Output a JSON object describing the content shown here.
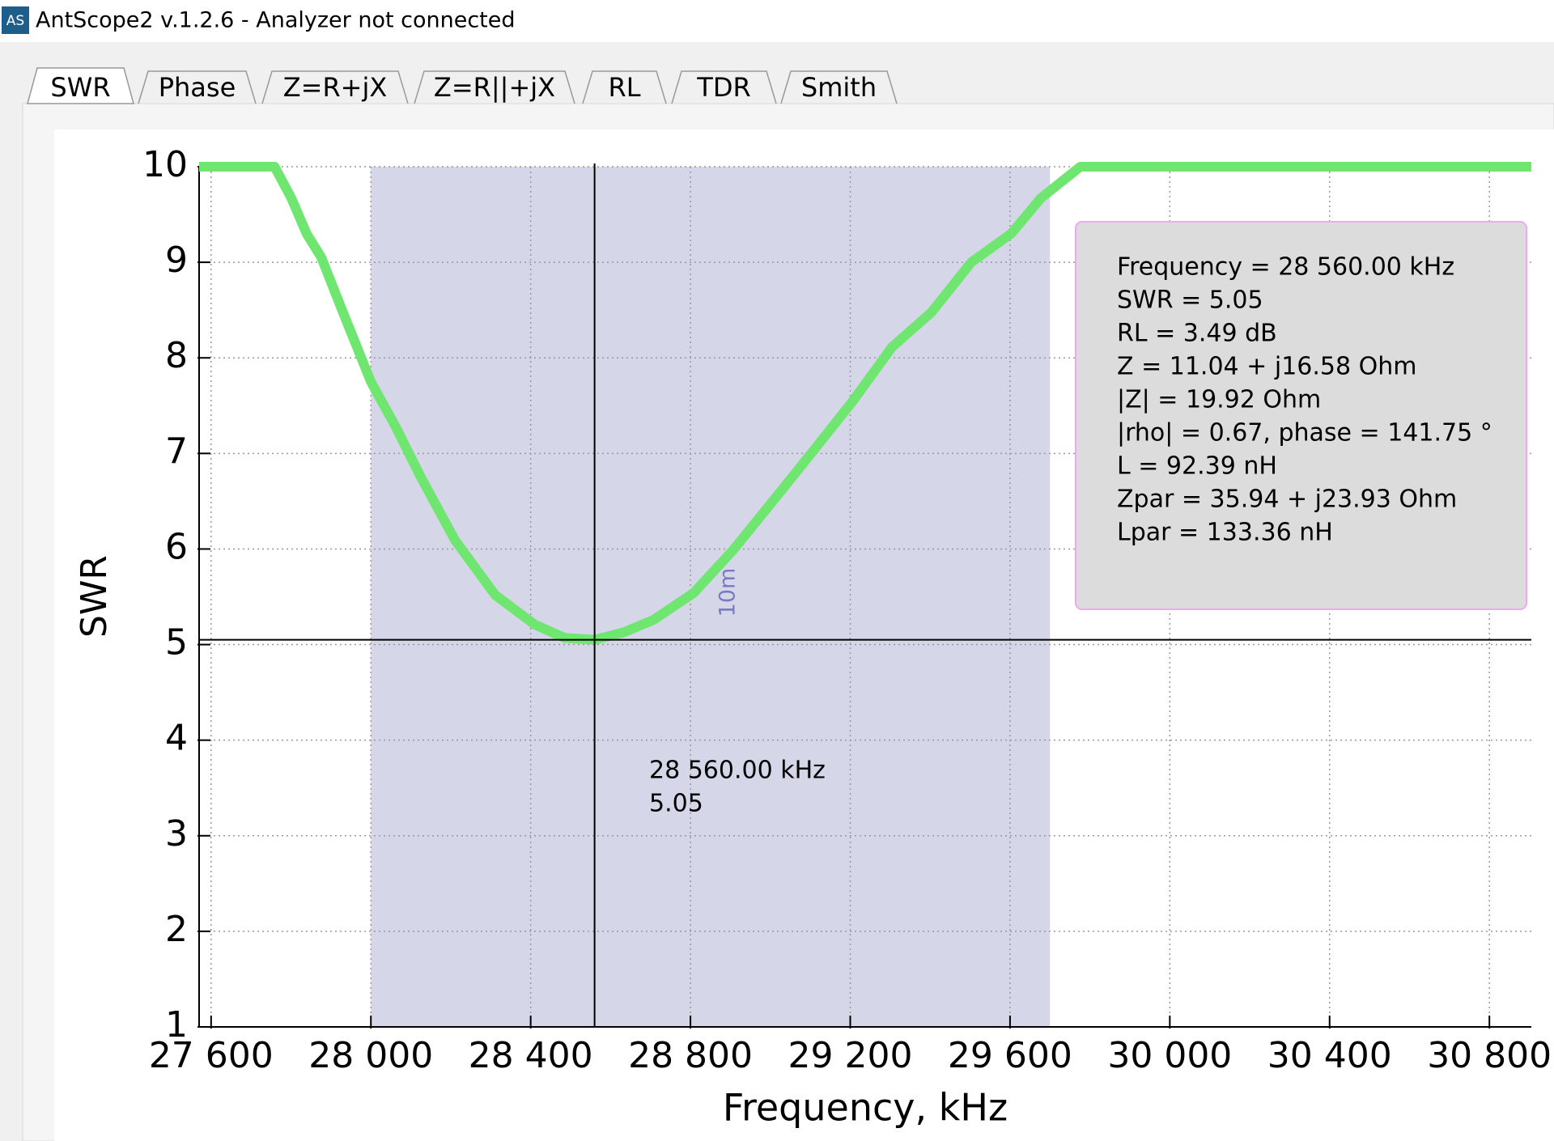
{
  "window": {
    "icon": "AS",
    "title": "AntScope2 v.1.2.6 - Analyzer not connected"
  },
  "tabs": [
    "SWR",
    "Phase",
    "Z=R+jX",
    "Z=R||+jX",
    "RL",
    "TDR",
    "Smith"
  ],
  "chart_data": {
    "type": "line",
    "xlabel": "Frequency, kHz",
    "ylabel": "SWR",
    "x": [
      27570,
      27759,
      27801,
      27839,
      27876,
      27925,
      28000,
      28062,
      28124,
      28211,
      28311,
      28410,
      28485,
      28560,
      28634,
      28708,
      28808,
      28907,
      29006,
      29106,
      29205,
      29304,
      29404,
      29503,
      29603,
      29677,
      29776,
      30905
    ],
    "values": [
      10,
      10,
      9.67,
      9.3,
      9.05,
      8.53,
      7.75,
      7.28,
      6.76,
      6.09,
      5.52,
      5.21,
      5.07,
      5.05,
      5.13,
      5.26,
      5.54,
      5.99,
      6.5,
      7.02,
      7.54,
      8.11,
      8.48,
      9.0,
      9.3,
      9.67,
      10,
      10
    ],
    "color": "#6fe66f",
    "xlim": [
      27570,
      30905
    ],
    "ylim": [
      1,
      10
    ],
    "xticks": [
      {
        "value": 27600,
        "label": "27 600"
      },
      {
        "value": 28000,
        "label": "28 000"
      },
      {
        "value": 28400,
        "label": "28 400"
      },
      {
        "value": 28800,
        "label": "28 800"
      },
      {
        "value": 29200,
        "label": "29 200"
      },
      {
        "value": 29600,
        "label": "29 600"
      },
      {
        "value": 30000,
        "label": "30 000"
      },
      {
        "value": 30400,
        "label": "30 400"
      },
      {
        "value": 30800,
        "label": "30 800"
      }
    ],
    "yticks": [
      1,
      2,
      3,
      4,
      5,
      6,
      7,
      8,
      9,
      10
    ],
    "grid": true,
    "bands": [
      {
        "from": 28000,
        "to": 29700,
        "label": "10m",
        "color": "#d5d6e8"
      }
    ],
    "cursor": {
      "x": 28560,
      "y": 5.05,
      "labels": [
        "28 560.00 kHz",
        "5.05"
      ]
    },
    "info_lines": [
      "Frequency = 28 560.00 kHz",
      "SWR = 5.05",
      "RL = 3.49 dB",
      "Z = 11.04 + j16.58 Ohm",
      "|Z| = 19.92 Ohm",
      "|rho| = 0.67, phase = 141.75 °",
      "L = 92.39 nH",
      "Zpar = 35.94 + j23.93 Ohm",
      "Lpar = 133.36 nH"
    ]
  }
}
